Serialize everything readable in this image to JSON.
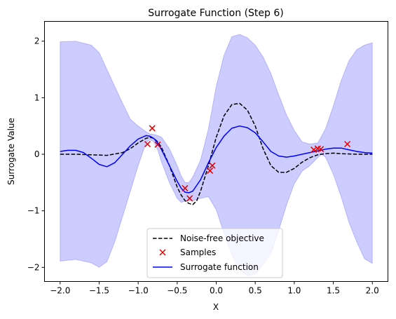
{
  "chart_data": {
    "type": "line",
    "title": "Surrogate Function (Step 6)",
    "xlabel": "X",
    "ylabel": "Surrogate Value",
    "xlim": [
      -2.2,
      2.2
    ],
    "ylim": [
      -2.25,
      2.35
    ],
    "xticks": [
      -2.0,
      -1.5,
      -1.0,
      -0.5,
      0.0,
      0.5,
      1.0,
      1.5,
      2.0
    ],
    "xtick_labels": [
      "−2.0",
      "−1.5",
      "−1.0",
      "−0.5",
      "0.0",
      "0.5",
      "1.0",
      "1.5",
      "2.0"
    ],
    "yticks": [
      -2,
      -1,
      0,
      1,
      2
    ],
    "ytick_labels": [
      "−2",
      "−1",
      "0",
      "1",
      "2"
    ],
    "grid": false,
    "legend_position": "bottom-center",
    "series": [
      {
        "name": "Noise-free objective",
        "kind": "line",
        "color": "#000000",
        "dash": "dashed",
        "x": [
          -2.0,
          -1.8,
          -1.6,
          -1.4,
          -1.2,
          -1.1,
          -1.0,
          -0.9,
          -0.85,
          -0.8,
          -0.75,
          -0.7,
          -0.6,
          -0.5,
          -0.45,
          -0.4,
          -0.35,
          -0.3,
          -0.25,
          -0.2,
          -0.1,
          0.0,
          0.1,
          0.2,
          0.3,
          0.4,
          0.5,
          0.6,
          0.7,
          0.8,
          0.9,
          1.0,
          1.1,
          1.2,
          1.3,
          1.4,
          1.5,
          1.6,
          1.8,
          2.0
        ],
        "y": [
          0.0,
          0.0,
          -0.01,
          -0.02,
          0.03,
          0.1,
          0.2,
          0.28,
          0.3,
          0.28,
          0.22,
          0.12,
          -0.2,
          -0.58,
          -0.72,
          -0.82,
          -0.87,
          -0.89,
          -0.82,
          -0.65,
          -0.2,
          0.3,
          0.68,
          0.88,
          0.9,
          0.78,
          0.5,
          0.1,
          -0.2,
          -0.32,
          -0.32,
          -0.25,
          -0.14,
          -0.06,
          -0.01,
          0.01,
          0.02,
          0.01,
          0.0,
          0.0
        ]
      },
      {
        "name": "Samples",
        "kind": "scatter",
        "color": "#dd0000",
        "marker": "x",
        "x": [
          -0.88,
          -0.82,
          -0.75,
          -0.4,
          -0.34,
          -0.08,
          -0.05,
          1.25,
          1.3,
          1.34,
          1.68
        ],
        "y": [
          0.18,
          0.46,
          0.17,
          -0.6,
          -0.78,
          -0.29,
          -0.2,
          0.08,
          0.1,
          0.09,
          0.18
        ]
      },
      {
        "name": "Surrogate function",
        "kind": "line",
        "color": "#0000ff",
        "dash": "solid",
        "x": [
          -2.0,
          -1.9,
          -1.8,
          -1.7,
          -1.6,
          -1.5,
          -1.4,
          -1.3,
          -1.2,
          -1.1,
          -1.0,
          -0.9,
          -0.85,
          -0.8,
          -0.75,
          -0.7,
          -0.6,
          -0.5,
          -0.45,
          -0.4,
          -0.35,
          -0.3,
          -0.2,
          -0.1,
          0.0,
          0.1,
          0.2,
          0.3,
          0.4,
          0.5,
          0.6,
          0.7,
          0.8,
          0.9,
          1.0,
          1.1,
          1.2,
          1.3,
          1.4,
          1.5,
          1.6,
          1.7,
          1.8,
          1.9,
          2.0
        ],
        "y": [
          0.05,
          0.07,
          0.07,
          0.03,
          -0.07,
          -0.18,
          -0.22,
          -0.15,
          0.0,
          0.15,
          0.27,
          0.33,
          0.32,
          0.28,
          0.2,
          0.08,
          -0.2,
          -0.48,
          -0.6,
          -0.67,
          -0.68,
          -0.65,
          -0.45,
          -0.15,
          0.12,
          0.32,
          0.46,
          0.5,
          0.47,
          0.38,
          0.22,
          0.05,
          -0.03,
          -0.05,
          -0.03,
          0.0,
          0.03,
          0.06,
          0.09,
          0.11,
          0.11,
          0.08,
          0.05,
          0.03,
          0.02
        ]
      }
    ],
    "band": {
      "color": "#0000ff",
      "opacity": 0.2,
      "x": [
        -2.0,
        -1.8,
        -1.6,
        -1.5,
        -1.4,
        -1.3,
        -1.2,
        -1.1,
        -1.0,
        -0.9,
        -0.85,
        -0.8,
        -0.75,
        -0.7,
        -0.6,
        -0.5,
        -0.45,
        -0.4,
        -0.35,
        -0.3,
        -0.2,
        -0.1,
        0.0,
        0.1,
        0.2,
        0.3,
        0.4,
        0.5,
        0.6,
        0.7,
        0.8,
        0.9,
        1.0,
        1.1,
        1.2,
        1.3,
        1.35,
        1.4,
        1.5,
        1.6,
        1.7,
        1.8,
        1.9,
        2.0
      ],
      "upper": [
        1.99,
        2.0,
        1.93,
        1.8,
        1.5,
        1.2,
        0.9,
        0.62,
        0.5,
        0.4,
        0.36,
        0.35,
        0.33,
        0.3,
        0.1,
        -0.2,
        -0.38,
        -0.5,
        -0.5,
        -0.4,
        -0.1,
        0.45,
        1.2,
        1.75,
        2.08,
        2.12,
        2.06,
        1.93,
        1.72,
        1.43,
        1.05,
        0.7,
        0.42,
        0.22,
        0.18,
        0.2,
        0.32,
        0.45,
        0.85,
        1.3,
        1.65,
        1.85,
        1.93,
        1.97
      ],
      "lower": [
        -1.89,
        -1.86,
        -1.92,
        -2.0,
        -1.9,
        -1.55,
        -1.1,
        -0.65,
        -0.2,
        0.2,
        0.26,
        0.22,
        0.08,
        -0.14,
        -0.5,
        -0.78,
        -0.85,
        -0.83,
        -0.82,
        -0.82,
        -0.78,
        -0.75,
        -0.98,
        -1.4,
        -1.78,
        -2.05,
        -2.15,
        -2.12,
        -1.96,
        -1.75,
        -1.35,
        -0.9,
        -0.52,
        -0.3,
        -0.2,
        -0.06,
        0.0,
        -0.05,
        -0.35,
        -0.75,
        -1.2,
        -1.55,
        -1.85,
        -1.93
      ]
    }
  }
}
